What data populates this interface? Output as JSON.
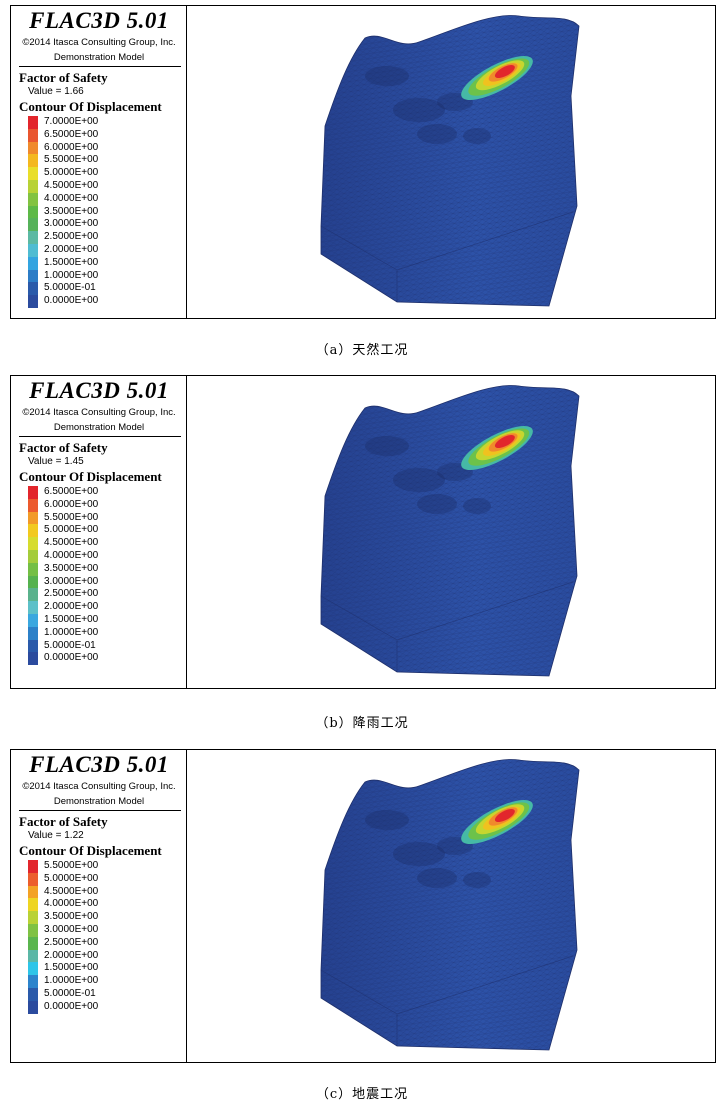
{
  "panels": [
    {
      "header": {
        "software": "FLAC3D 5.01",
        "copyright": "©2014 Itasca Consulting Group, Inc.",
        "model": "Demonstration Model"
      },
      "fos": {
        "title": "Factor of Safety",
        "value": "Value = 1.66"
      },
      "contour": {
        "title": "Contour Of Displacement",
        "levels": [
          "7.0000E+00",
          "6.5000E+00",
          "6.0000E+00",
          "5.5000E+00",
          "5.0000E+00",
          "4.5000E+00",
          "4.0000E+00",
          "3.5000E+00",
          "3.0000E+00",
          "2.5000E+00",
          "2.0000E+00",
          "1.5000E+00",
          "1.0000E+00",
          "5.0000E-01",
          "0.0000E+00"
        ],
        "colors": [
          "#e2262c",
          "#e9562f",
          "#f08a2c",
          "#f4b820",
          "#e9de2a",
          "#b8d236",
          "#82c341",
          "#5db947",
          "#56b25a",
          "#5cb9a3",
          "#4fbcd2",
          "#33a4e0",
          "#2c7cc6",
          "#2a5aaa",
          "#2b4b9e"
        ]
      },
      "caption": "（a）天然工况"
    },
    {
      "header": {
        "software": "FLAC3D 5.01",
        "copyright": "©2014 Itasca Consulting Group, Inc.",
        "model": "Demonstration Model"
      },
      "fos": {
        "title": "Factor of Safety",
        "value": "Value = 1.45"
      },
      "contour": {
        "title": "Contour Of Displacement",
        "levels": [
          "6.5000E+00",
          "6.0000E+00",
          "5.5000E+00",
          "5.0000E+00",
          "4.5000E+00",
          "4.0000E+00",
          "3.5000E+00",
          "3.0000E+00",
          "2.5000E+00",
          "2.0000E+00",
          "1.5000E+00",
          "1.0000E+00",
          "5.0000E-01",
          "0.0000E+00"
        ],
        "colors": [
          "#e2262c",
          "#ec5a2d",
          "#f29a28",
          "#f2c91f",
          "#d6dc2e",
          "#a4cc3b",
          "#74bf44",
          "#55b24e",
          "#5ab28c",
          "#5dc0c8",
          "#3aa7df",
          "#2c80c8",
          "#2a5aaa",
          "#2b4b9e"
        ]
      },
      "caption": "（b）降雨工况"
    },
    {
      "header": {
        "software": "FLAC3D 5.01",
        "copyright": "©2014 Itasca Consulting Group, Inc.",
        "model": "Demonstration Model"
      },
      "fos": {
        "title": "Factor of Safety",
        "value": "Value = 1.22"
      },
      "contour": {
        "title": "Contour Of Displacement",
        "levels": [
          "5.5000E+00",
          "5.0000E+00",
          "4.5000E+00",
          "4.0000E+00",
          "3.5000E+00",
          "3.0000E+00",
          "2.5000E+00",
          "2.0000E+00",
          "1.5000E+00",
          "1.0000E+00",
          "5.0000E-01",
          "0.0000E+00"
        ],
        "colors": [
          "#e2262c",
          "#ec5e2d",
          "#f3a225",
          "#eed523",
          "#b9d236",
          "#7fc243",
          "#5ab54e",
          "#5bb7a6",
          "#2ec5e8",
          "#2c84cc",
          "#2a5aaa",
          "#2b4b9e"
        ]
      },
      "caption": "（c）地震工况"
    }
  ]
}
